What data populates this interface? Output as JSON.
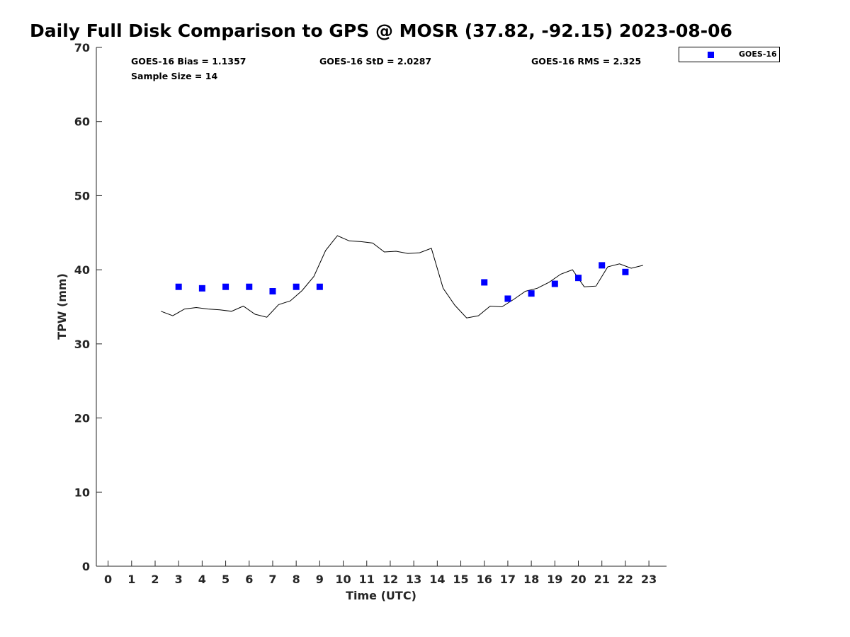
{
  "title": "Daily Full Disk Comparison to GPS @ MOSR (37.82, -92.15) 2023-08-06",
  "stats": {
    "bias": "GOES-16 Bias = 1.1357",
    "std": "GOES-16 StD = 2.0287",
    "rms": "GOES-16 RMS = 2.325",
    "sample": "Sample Size = 14"
  },
  "legend": {
    "label": "GOES-16",
    "marker_color": "#0000ff"
  },
  "chart_data": {
    "type": "scatter",
    "title": "Daily Full Disk Comparison to GPS @ MOSR (37.82, -92.15) 2023-08-06",
    "xlabel": "Time (UTC)",
    "ylabel": "TPW (mm)",
    "xlim": [
      -0.5,
      23.75
    ],
    "ylim": [
      0,
      70
    ],
    "xticks": [
      0,
      1,
      2,
      3,
      4,
      5,
      6,
      7,
      8,
      9,
      10,
      11,
      12,
      13,
      14,
      15,
      16,
      17,
      18,
      19,
      20,
      21,
      22,
      23
    ],
    "yticks": [
      0,
      10,
      20,
      30,
      40,
      50,
      60,
      70
    ],
    "grid": false,
    "legend_position": "top-right",
    "series": [
      {
        "name": "GOES-16",
        "kind": "scatter",
        "marker": "square",
        "color": "#0000ff",
        "x": [
          3,
          4,
          5,
          6,
          7,
          8,
          9,
          16,
          17,
          18,
          19,
          20,
          21,
          22
        ],
        "y": [
          37.7,
          37.5,
          37.7,
          37.7,
          37.1,
          37.7,
          37.7,
          38.3,
          36.1,
          36.8,
          38.1,
          38.9,
          40.6,
          39.7
        ]
      },
      {
        "kind": "line",
        "color": "#000000",
        "x": [
          2.25,
          2.75,
          3.25,
          3.75,
          4.25,
          4.75,
          5.25,
          5.75,
          6.25,
          6.75,
          7.25,
          7.75,
          8.25,
          8.75,
          9.25,
          9.75,
          10.25,
          10.75,
          11.25,
          11.75,
          12.25,
          12.75,
          13.25,
          13.75,
          14.25,
          14.75,
          15.25,
          15.75,
          16.25,
          16.75,
          17.25,
          17.75,
          18.25,
          18.75,
          19.25,
          19.75,
          20.25,
          20.75,
          21.25,
          21.75,
          22.25,
          22.75
        ],
        "y": [
          34.4,
          33.8,
          34.7,
          34.9,
          34.7,
          34.6,
          34.4,
          35.1,
          34.0,
          33.6,
          35.3,
          35.8,
          37.2,
          39.1,
          42.6,
          44.6,
          43.9,
          43.8,
          43.6,
          42.4,
          42.5,
          42.2,
          42.3,
          42.9,
          37.5,
          35.2,
          33.5,
          33.8,
          35.1,
          35.0,
          36.0,
          37.1,
          37.5,
          38.3,
          39.4,
          40.0,
          37.7,
          37.8,
          40.4,
          40.8,
          40.2,
          40.6
        ]
      }
    ]
  }
}
